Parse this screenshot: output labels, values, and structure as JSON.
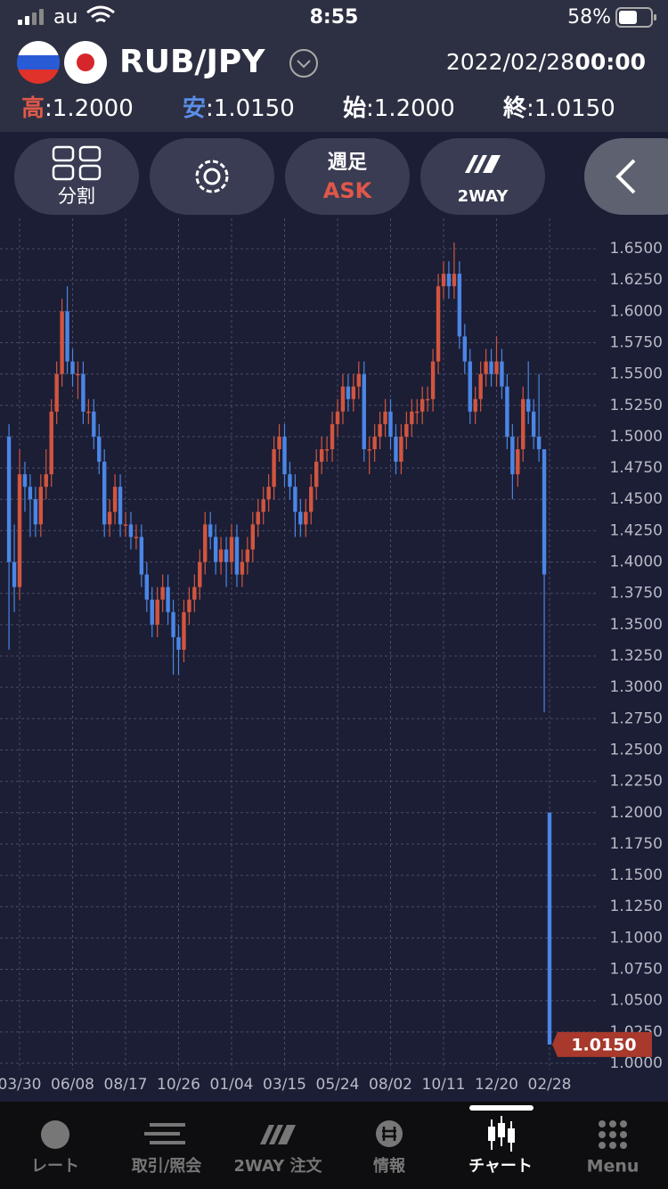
{
  "status_bar": {
    "carrier": "au",
    "time": "8:55",
    "battery": "58%"
  },
  "header": {
    "pair": "RUB/JPY",
    "date": "2022/02/28",
    "time": "00:00",
    "stats": [
      {
        "label": "高",
        "value": ":1.2000"
      },
      {
        "label": "安",
        "value": ":1.0150"
      },
      {
        "label": "始",
        "value": ":1.2000"
      },
      {
        "label": "終",
        "value": ":1.0150"
      }
    ]
  },
  "toolbar": {
    "split": "分割",
    "period": "週足",
    "side": "ASK",
    "mode": "2WAY"
  },
  "chart_data": {
    "type": "candlestick",
    "up_color": "#d2553f",
    "down_color": "#4b86e5",
    "grid": true,
    "categories": [
      null,
      null,
      "03/30",
      null,
      null,
      null,
      null,
      null,
      null,
      null,
      null,
      null,
      "06/08",
      null,
      null,
      null,
      null,
      null,
      null,
      null,
      null,
      null,
      "08/17",
      null,
      null,
      null,
      null,
      null,
      null,
      null,
      null,
      null,
      "10/26",
      null,
      null,
      null,
      null,
      null,
      null,
      null,
      null,
      null,
      "01/04",
      null,
      null,
      null,
      null,
      null,
      null,
      null,
      null,
      null,
      "03/15",
      null,
      null,
      null,
      null,
      null,
      null,
      null,
      null,
      null,
      "05/24",
      null,
      null,
      null,
      null,
      null,
      null,
      null,
      null,
      null,
      "08/02",
      null,
      null,
      null,
      null,
      null,
      null,
      null,
      null,
      null,
      "10/11",
      null,
      null,
      null,
      null,
      null,
      null,
      null,
      null,
      null,
      "12/20",
      null,
      null,
      null,
      null,
      null,
      null,
      null,
      null,
      null,
      "02/28"
    ],
    "ohlc": [
      [
        1.5,
        1.51,
        1.33,
        1.4
      ],
      [
        1.4,
        1.43,
        1.36,
        1.38
      ],
      [
        1.38,
        1.49,
        1.37,
        1.47
      ],
      [
        1.47,
        1.48,
        1.44,
        1.46
      ],
      [
        1.46,
        1.47,
        1.42,
        1.45
      ],
      [
        1.45,
        1.46,
        1.42,
        1.43
      ],
      [
        1.43,
        1.47,
        1.42,
        1.46
      ],
      [
        1.46,
        1.49,
        1.45,
        1.47
      ],
      [
        1.47,
        1.53,
        1.46,
        1.52
      ],
      [
        1.52,
        1.56,
        1.51,
        1.55
      ],
      [
        1.55,
        1.61,
        1.54,
        1.6
      ],
      [
        1.6,
        1.62,
        1.55,
        1.56
      ],
      [
        1.56,
        1.57,
        1.54,
        1.55
      ],
      [
        1.55,
        1.56,
        1.53,
        1.55
      ],
      [
        1.55,
        1.56,
        1.51,
        1.52
      ],
      [
        1.52,
        1.53,
        1.51,
        1.52
      ],
      [
        1.52,
        1.53,
        1.49,
        1.5
      ],
      [
        1.5,
        1.51,
        1.47,
        1.48
      ],
      [
        1.48,
        1.49,
        1.42,
        1.43
      ],
      [
        1.43,
        1.45,
        1.42,
        1.44
      ],
      [
        1.44,
        1.47,
        1.43,
        1.46
      ],
      [
        1.46,
        1.47,
        1.42,
        1.43
      ],
      [
        1.43,
        1.44,
        1.42,
        1.43
      ],
      [
        1.43,
        1.44,
        1.41,
        1.42
      ],
      [
        1.42,
        1.43,
        1.41,
        1.42
      ],
      [
        1.42,
        1.43,
        1.38,
        1.39
      ],
      [
        1.39,
        1.4,
        1.36,
        1.37
      ],
      [
        1.37,
        1.38,
        1.34,
        1.35
      ],
      [
        1.35,
        1.38,
        1.34,
        1.37
      ],
      [
        1.37,
        1.39,
        1.36,
        1.38
      ],
      [
        1.38,
        1.39,
        1.35,
        1.36
      ],
      [
        1.36,
        1.37,
        1.31,
        1.34
      ],
      [
        1.34,
        1.35,
        1.31,
        1.33
      ],
      [
        1.33,
        1.37,
        1.32,
        1.36
      ],
      [
        1.36,
        1.38,
        1.35,
        1.37
      ],
      [
        1.37,
        1.39,
        1.36,
        1.38
      ],
      [
        1.38,
        1.41,
        1.37,
        1.4
      ],
      [
        1.4,
        1.44,
        1.39,
        1.43
      ],
      [
        1.43,
        1.44,
        1.41,
        1.42
      ],
      [
        1.42,
        1.43,
        1.39,
        1.4
      ],
      [
        1.4,
        1.42,
        1.39,
        1.41
      ],
      [
        1.41,
        1.42,
        1.38,
        1.4
      ],
      [
        1.4,
        1.43,
        1.39,
        1.42
      ],
      [
        1.42,
        1.43,
        1.38,
        1.39
      ],
      [
        1.39,
        1.41,
        1.38,
        1.4
      ],
      [
        1.4,
        1.42,
        1.39,
        1.41
      ],
      [
        1.41,
        1.44,
        1.4,
        1.43
      ],
      [
        1.43,
        1.45,
        1.42,
        1.44
      ],
      [
        1.44,
        1.46,
        1.43,
        1.45
      ],
      [
        1.45,
        1.47,
        1.44,
        1.46
      ],
      [
        1.46,
        1.5,
        1.45,
        1.49
      ],
      [
        1.49,
        1.51,
        1.48,
        1.5
      ],
      [
        1.5,
        1.51,
        1.46,
        1.47
      ],
      [
        1.47,
        1.48,
        1.45,
        1.46
      ],
      [
        1.46,
        1.47,
        1.42,
        1.44
      ],
      [
        1.44,
        1.45,
        1.42,
        1.43
      ],
      [
        1.43,
        1.45,
        1.42,
        1.44
      ],
      [
        1.44,
        1.47,
        1.43,
        1.46
      ],
      [
        1.46,
        1.49,
        1.45,
        1.48
      ],
      [
        1.48,
        1.5,
        1.47,
        1.49
      ],
      [
        1.49,
        1.5,
        1.48,
        1.49
      ],
      [
        1.49,
        1.52,
        1.48,
        1.51
      ],
      [
        1.51,
        1.53,
        1.5,
        1.52
      ],
      [
        1.52,
        1.55,
        1.51,
        1.54
      ],
      [
        1.54,
        1.55,
        1.52,
        1.53
      ],
      [
        1.53,
        1.55,
        1.52,
        1.54
      ],
      [
        1.54,
        1.56,
        1.53,
        1.55
      ],
      [
        1.55,
        1.56,
        1.48,
        1.49
      ],
      [
        1.49,
        1.5,
        1.47,
        1.49
      ],
      [
        1.49,
        1.51,
        1.48,
        1.5
      ],
      [
        1.5,
        1.52,
        1.49,
        1.51
      ],
      [
        1.51,
        1.53,
        1.5,
        1.52
      ],
      [
        1.52,
        1.53,
        1.49,
        1.5
      ],
      [
        1.5,
        1.51,
        1.47,
        1.48
      ],
      [
        1.48,
        1.51,
        1.47,
        1.5
      ],
      [
        1.5,
        1.52,
        1.49,
        1.51
      ],
      [
        1.51,
        1.53,
        1.5,
        1.52
      ],
      [
        1.52,
        1.53,
        1.51,
        1.52
      ],
      [
        1.52,
        1.54,
        1.51,
        1.53
      ],
      [
        1.53,
        1.54,
        1.52,
        1.53
      ],
      [
        1.53,
        1.57,
        1.52,
        1.56
      ],
      [
        1.56,
        1.63,
        1.55,
        1.62
      ],
      [
        1.62,
        1.64,
        1.61,
        1.63
      ],
      [
        1.63,
        1.64,
        1.61,
        1.62
      ],
      [
        1.62,
        1.655,
        1.61,
        1.63
      ],
      [
        1.63,
        1.64,
        1.57,
        1.58
      ],
      [
        1.58,
        1.59,
        1.55,
        1.56
      ],
      [
        1.56,
        1.57,
        1.51,
        1.52
      ],
      [
        1.52,
        1.54,
        1.51,
        1.53
      ],
      [
        1.53,
        1.56,
        1.52,
        1.55
      ],
      [
        1.55,
        1.57,
        1.54,
        1.56
      ],
      [
        1.56,
        1.57,
        1.54,
        1.55
      ],
      [
        1.55,
        1.58,
        1.54,
        1.56
      ],
      [
        1.56,
        1.57,
        1.53,
        1.54
      ],
      [
        1.54,
        1.55,
        1.49,
        1.5
      ],
      [
        1.5,
        1.51,
        1.45,
        1.47
      ],
      [
        1.47,
        1.5,
        1.46,
        1.49
      ],
      [
        1.49,
        1.54,
        1.48,
        1.53
      ],
      [
        1.53,
        1.56,
        1.51,
        1.52
      ],
      [
        1.52,
        1.53,
        1.49,
        1.5
      ],
      [
        1.5,
        1.55,
        1.48,
        1.49
      ],
      [
        1.49,
        1.49,
        1.28,
        1.39
      ],
      [
        1.2,
        1.2,
        1.015,
        1.015
      ]
    ],
    "ylim": [
      1.0,
      1.65
    ],
    "yticks": [
      {
        "value": 1.0,
        "label": "1.0000"
      },
      {
        "value": 1.025,
        "label": "1.0250"
      },
      {
        "value": 1.05,
        "label": "1.0500"
      },
      {
        "value": 1.075,
        "label": "1.0750"
      },
      {
        "value": 1.1,
        "label": "1.1000"
      },
      {
        "value": 1.125,
        "label": "1.1250"
      },
      {
        "value": 1.15,
        "label": "1.1500"
      },
      {
        "value": 1.175,
        "label": "1.1750"
      },
      {
        "value": 1.2,
        "label": "1.2000"
      },
      {
        "value": 1.225,
        "label": "1.2250"
      },
      {
        "value": 1.25,
        "label": "1.2500"
      },
      {
        "value": 1.275,
        "label": "1.2750"
      },
      {
        "value": 1.3,
        "label": "1.3000"
      },
      {
        "value": 1.325,
        "label": "1.3250"
      },
      {
        "value": 1.35,
        "label": "1.3500"
      },
      {
        "value": 1.375,
        "label": "1.3750"
      },
      {
        "value": 1.4,
        "label": "1.4000"
      },
      {
        "value": 1.425,
        "label": "1.4250"
      },
      {
        "value": 1.45,
        "label": "1.4500"
      },
      {
        "value": 1.475,
        "label": "1.4750"
      },
      {
        "value": 1.5,
        "label": "1.5000"
      },
      {
        "value": 1.525,
        "label": "1.5250"
      },
      {
        "value": 1.55,
        "label": "1.5500"
      },
      {
        "value": 1.575,
        "label": "1.5750"
      },
      {
        "value": 1.6,
        "label": "1.6000"
      },
      {
        "value": 1.625,
        "label": "1.6250"
      },
      {
        "value": 1.65,
        "label": "1.6500"
      }
    ],
    "last_price_label": "1.0150"
  },
  "tab_bar": [
    "レート",
    "取引/照会",
    "2WAY 注文",
    "情報",
    "チャート",
    "Menu"
  ]
}
